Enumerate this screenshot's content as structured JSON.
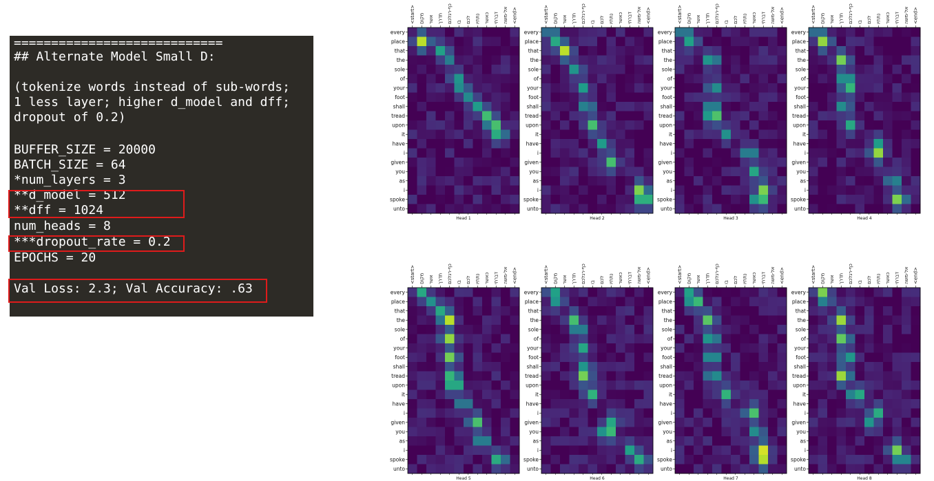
{
  "terminal": {
    "lines": [
      "============================",
      "## Alternate Model Small D:",
      "",
      "(tokenize words instead of sub-words;",
      "1 less layer; higher d_model and dff;",
      "dropout of 0.2)",
      "",
      "BUFFER_SIZE = 20000",
      "BATCH_SIZE = 64",
      "*num_layers = 3",
      "**d_model = 512",
      "**dff = 1024",
      "num_heads = 8",
      "***dropout_rate = 0.2",
      "EPOCHS = 20",
      "",
      "Val Loss: 2.3; Val Accuracy: .63"
    ],
    "highlight_color": "#e01b1b"
  },
  "chart_data": {
    "type": "heatmap",
    "colormap": "viridis",
    "value_range": [
      0,
      1
    ],
    "x_tick_labels": [
      "<start>",
      "מקום",
      "אשר",
      "תדרך",
      "כף-רגלכם",
      "בו",
      "לכם",
      "נתתיו",
      "כאשר",
      "דברתי",
      "אל-משה",
      "<end>"
    ],
    "y_tick_labels": [
      "every",
      "place",
      "that",
      "the",
      "sole",
      "of",
      "your",
      "foot",
      "shall",
      "tread",
      "upon",
      "it",
      "have",
      "i",
      "given",
      "you",
      "as",
      "i",
      "spoke",
      "unto"
    ],
    "heads": [
      {
        "label": "Head 1",
        "peaks": [
          [
            1,
            0.9,
            1.0
          ],
          [
            1,
            0.75,
            1.2
          ],
          [
            2,
            0.6,
            3.2
          ],
          [
            3,
            0.45,
            3.8
          ],
          [
            5,
            0.55,
            4.8
          ],
          [
            6,
            0.55,
            5.3
          ],
          [
            7,
            0.5,
            6.2
          ],
          [
            8,
            0.55,
            6.9
          ],
          [
            9,
            0.7,
            8.1
          ],
          [
            10,
            0.8,
            8.7
          ],
          [
            11,
            0.7,
            9.3
          ]
        ]
      },
      {
        "label": "Head 2",
        "peaks": [
          [
            0,
            0.5,
            0.5
          ],
          [
            1,
            0.6,
            1.0
          ],
          [
            2,
            0.9,
            2.0
          ],
          [
            4,
            0.55,
            3.2
          ],
          [
            6,
            0.55,
            4.0
          ],
          [
            8,
            0.55,
            4.4
          ],
          [
            10,
            0.7,
            5.0
          ],
          [
            12,
            0.55,
            6.1
          ],
          [
            14,
            0.7,
            7.0
          ],
          [
            17,
            0.85,
            10.2
          ],
          [
            18,
            0.9,
            10.5
          ]
        ]
      },
      {
        "label": "Head 3",
        "peaks": [
          [
            0,
            0.55,
            0.5
          ],
          [
            1,
            0.6,
            1.2
          ],
          [
            3,
            0.65,
            3.4
          ],
          [
            6,
            0.55,
            3.7
          ],
          [
            8,
            0.6,
            3.5
          ],
          [
            9,
            0.9,
            3.6
          ],
          [
            11,
            0.5,
            5.0
          ],
          [
            13,
            0.6,
            7.5
          ],
          [
            15,
            0.6,
            8.1
          ],
          [
            17,
            0.8,
            9.0
          ],
          [
            18,
            0.85,
            8.6
          ]
        ]
      },
      {
        "label": "Head 4",
        "peaks": [
          [
            0,
            0.5,
            0.5
          ],
          [
            1,
            0.85,
            1.1
          ],
          [
            3,
            0.8,
            3.1
          ],
          [
            5,
            0.7,
            3.5
          ],
          [
            6,
            0.7,
            3.8
          ],
          [
            8,
            0.55,
            3.3
          ],
          [
            10,
            0.6,
            4.0
          ],
          [
            12,
            0.55,
            7.0
          ],
          [
            13,
            0.85,
            6.9
          ],
          [
            16,
            0.55,
            8.6
          ],
          [
            18,
            0.85,
            9.2
          ]
        ]
      },
      {
        "label": "Head 5",
        "peaks": [
          [
            0,
            0.6,
            1.0
          ],
          [
            1,
            0.5,
            2.0
          ],
          [
            2,
            0.6,
            3.0
          ],
          [
            3,
            0.95,
            3.8
          ],
          [
            5,
            0.85,
            3.9
          ],
          [
            7,
            0.8,
            4.1
          ],
          [
            9,
            0.75,
            4.3
          ],
          [
            10,
            0.85,
            4.5
          ],
          [
            12,
            0.55,
            5.5
          ],
          [
            14,
            0.75,
            6.8
          ],
          [
            16,
            0.6,
            7.5
          ],
          [
            18,
            0.7,
            9.3
          ]
        ]
      },
      {
        "label": "Head 6",
        "peaks": [
          [
            0,
            0.6,
            0.8
          ],
          [
            1,
            0.55,
            1.2
          ],
          [
            3,
            0.7,
            3.0
          ],
          [
            4,
            0.6,
            3.5
          ],
          [
            6,
            0.6,
            3.9
          ],
          [
            8,
            0.55,
            4.2
          ],
          [
            9,
            0.8,
            4.1
          ],
          [
            11,
            0.65,
            4.9
          ],
          [
            14,
            0.6,
            7.1
          ],
          [
            15,
            0.85,
            6.6
          ],
          [
            17,
            0.6,
            9.2
          ],
          [
            18,
            0.65,
            10.2
          ]
        ]
      },
      {
        "label": "Head 7",
        "peaks": [
          [
            0,
            0.6,
            1.2
          ],
          [
            1,
            0.85,
            1.6
          ],
          [
            3,
            0.75,
            3.1
          ],
          [
            5,
            0.65,
            3.4
          ],
          [
            7,
            0.65,
            3.5
          ],
          [
            9,
            0.6,
            3.6
          ],
          [
            11,
            0.65,
            5.0
          ],
          [
            13,
            0.75,
            7.8
          ],
          [
            15,
            0.55,
            8.3
          ],
          [
            17,
            0.95,
            8.9
          ],
          [
            18,
            0.9,
            8.9
          ]
        ]
      },
      {
        "label": "Head 8",
        "peaks": [
          [
            0,
            0.8,
            1.0
          ],
          [
            1,
            0.5,
            1.3
          ],
          [
            3,
            0.85,
            3.0
          ],
          [
            5,
            0.8,
            3.2
          ],
          [
            7,
            0.6,
            3.7
          ],
          [
            9,
            0.9,
            3.2
          ],
          [
            11,
            0.75,
            4.6
          ],
          [
            13,
            0.65,
            6.8
          ],
          [
            14,
            0.55,
            6.2
          ],
          [
            17,
            0.8,
            8.9
          ],
          [
            18,
            0.65,
            9.5
          ]
        ]
      }
    ]
  }
}
